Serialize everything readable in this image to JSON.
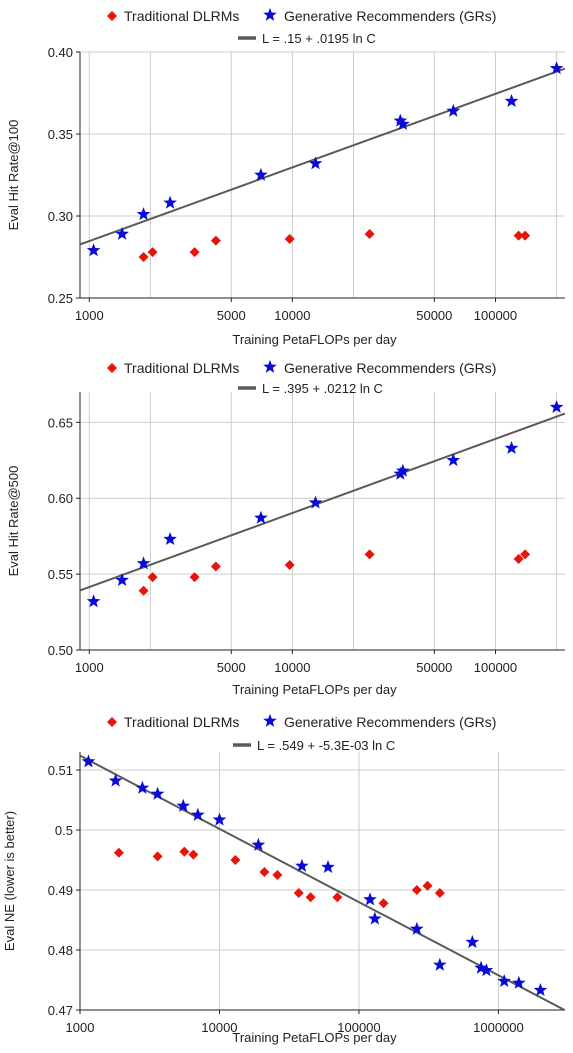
{
  "legend": {
    "dlrm_label": "Traditional DLRMs",
    "gr_label": "Generative Recommenders (GRs)"
  },
  "colors": {
    "dlrm": "#e8140c",
    "gr": "#0a0ad6",
    "fit": "#5a5a5a",
    "grid": "#cccccc"
  },
  "chart_data": [
    {
      "type": "scatter",
      "xscale": "log",
      "xlabel": "Training PetaFLOPs per day",
      "ylabel": "Eval Hit Rate@100",
      "fit_label": "L = .15 + .0195 ln C",
      "fit": {
        "a": 0.15,
        "b": 0.0195
      },
      "xlim": [
        900,
        220000
      ],
      "ylim": [
        0.25,
        0.4
      ],
      "xticks": [
        1000,
        5000,
        10000,
        50000,
        100000
      ],
      "xtick_labels": [
        "1000",
        "5000",
        "10000",
        "50000",
        "100000"
      ],
      "yticks": [
        0.25,
        0.3,
        0.35,
        0.4
      ],
      "ytick_labels": [
        "0.25",
        "0.30",
        "0.35",
        "0.40"
      ],
      "xgrid": [
        1000,
        2000,
        5000,
        10000,
        20000,
        50000,
        100000,
        200000
      ],
      "series": [
        {
          "name": "Traditional DLRMs",
          "marker": "diamond",
          "x": [
            1850,
            2050,
            3300,
            4200,
            9700,
            24000,
            130000,
            140000
          ],
          "y": [
            0.275,
            0.278,
            0.278,
            0.285,
            0.286,
            0.289,
            0.288,
            0.288
          ]
        },
        {
          "name": "Generative Recommenders (GRs)",
          "marker": "star",
          "x": [
            1050,
            1450,
            1850,
            2500,
            7000,
            13000,
            34000,
            35000,
            62000,
            120000,
            200000
          ],
          "y": [
            0.279,
            0.289,
            0.301,
            0.308,
            0.325,
            0.332,
            0.358,
            0.356,
            0.364,
            0.37,
            0.39
          ]
        }
      ]
    },
    {
      "type": "scatter",
      "xscale": "log",
      "xlabel": "Training PetaFLOPs per day",
      "ylabel": "Eval Hit Rate@500",
      "fit_label": "L = .395 + .0212 ln C",
      "fit": {
        "a": 0.395,
        "b": 0.0212
      },
      "xlim": [
        900,
        220000
      ],
      "ylim": [
        0.5,
        0.67
      ],
      "xticks": [
        1000,
        5000,
        10000,
        50000,
        100000
      ],
      "xtick_labels": [
        "1000",
        "5000",
        "10000",
        "50000",
        "100000"
      ],
      "yticks": [
        0.5,
        0.55,
        0.6,
        0.65
      ],
      "ytick_labels": [
        "0.50",
        "0.55",
        "0.60",
        "0.65"
      ],
      "xgrid": [
        1000,
        2000,
        5000,
        10000,
        20000,
        50000,
        100000,
        200000
      ],
      "series": [
        {
          "name": "Traditional DLRMs",
          "marker": "diamond",
          "x": [
            1850,
            2050,
            3300,
            4200,
            9700,
            24000,
            130000,
            140000
          ],
          "y": [
            0.539,
            0.548,
            0.548,
            0.555,
            0.556,
            0.563,
            0.56,
            0.563
          ]
        },
        {
          "name": "Generative Recommenders (GRs)",
          "marker": "star",
          "x": [
            1050,
            1450,
            1850,
            2500,
            7000,
            13000,
            34000,
            35000,
            62000,
            120000,
            200000
          ],
          "y": [
            0.532,
            0.546,
            0.557,
            0.573,
            0.587,
            0.597,
            0.616,
            0.618,
            0.625,
            0.633,
            0.66
          ]
        }
      ]
    },
    {
      "type": "scatter",
      "xscale": "log",
      "xlabel": "Training PetaFLOPs per day",
      "ylabel": "Eval NE (lower is better)",
      "fit_label": "L = .549 + -5.3E-03 ln C",
      "fit": {
        "a": 0.549,
        "b": -0.0053
      },
      "xlim": [
        1000,
        3000000
      ],
      "ylim": [
        0.47,
        0.513
      ],
      "xticks": [
        1000,
        10000,
        100000,
        1000000
      ],
      "xtick_labels": [
        "1000",
        "10000",
        "100000",
        "1000000"
      ],
      "yticks": [
        0.47,
        0.48,
        0.49,
        0.5,
        0.51
      ],
      "ytick_labels": [
        "0.47",
        "0.48",
        "0.49",
        "0.5",
        "0.51"
      ],
      "xgrid": [
        1000,
        10000,
        100000,
        1000000
      ],
      "series": [
        {
          "name": "Traditional DLRMs",
          "marker": "diamond",
          "x": [
            1900,
            3600,
            5600,
            6500,
            13000,
            21000,
            26000,
            37000,
            45000,
            70000,
            150000,
            260000,
            310000,
            380000
          ],
          "y": [
            0.4962,
            0.4956,
            0.4964,
            0.4959,
            0.495,
            0.493,
            0.4925,
            0.4895,
            0.4888,
            0.4888,
            0.4878,
            0.49,
            0.4907,
            0.4895
          ]
        },
        {
          "name": "Generative Recommenders (GRs)",
          "marker": "star",
          "x": [
            1150,
            1800,
            2800,
            3600,
            5500,
            7000,
            10000,
            19000,
            39000,
            60000,
            120000,
            130000,
            260000,
            380000,
            650000,
            750000,
            820000,
            1100000,
            1400000,
            2000000
          ],
          "y": [
            0.5114,
            0.5082,
            0.507,
            0.506,
            0.504,
            0.5025,
            0.5017,
            0.4975,
            0.494,
            0.4938,
            0.4884,
            0.4852,
            0.4835,
            0.4775,
            0.4813,
            0.477,
            0.4766,
            0.4748,
            0.4745,
            0.4733
          ]
        }
      ]
    }
  ]
}
